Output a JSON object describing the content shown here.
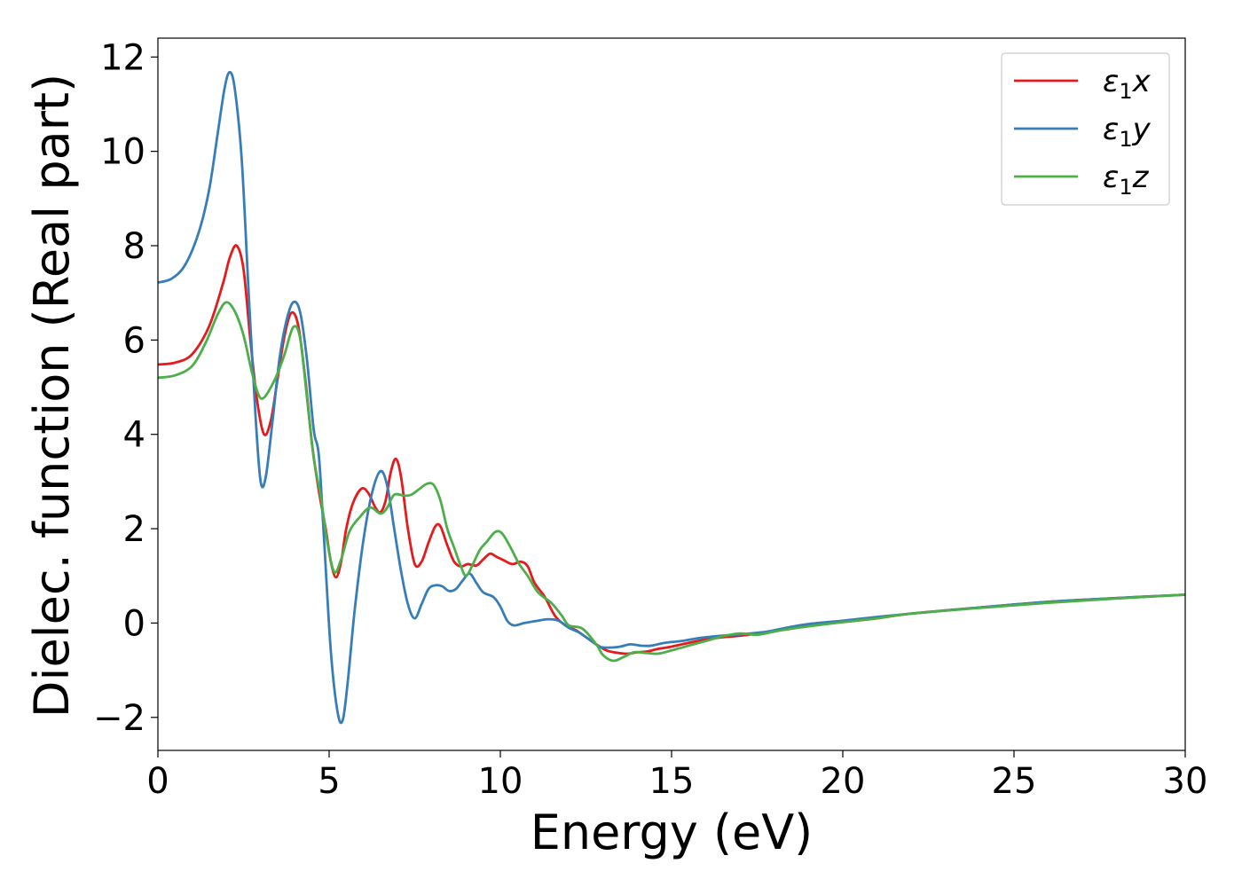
{
  "chart_data": {
    "type": "line",
    "title": "",
    "xlabel": "Energy (eV)",
    "ylabel": "Dielec. function (Real part)",
    "xlim": [
      0,
      30
    ],
    "ylim": [
      -2.7,
      12.4
    ],
    "xticks": [
      0,
      5,
      10,
      15,
      20,
      25,
      30
    ],
    "yticks": [
      -2,
      0,
      2,
      4,
      6,
      8,
      10,
      12
    ],
    "xtick_labels": [
      "0",
      "5",
      "10",
      "15",
      "20",
      "25",
      "30"
    ],
    "ytick_labels": [
      "−2",
      "0",
      "2",
      "4",
      "6",
      "8",
      "10",
      "12"
    ],
    "grid": false,
    "legend_position": "top-right",
    "series": [
      {
        "name": "ε₁x",
        "name_base": "ε",
        "name_sub": "1",
        "name_suffix": "x",
        "color": "#e41a1c",
        "points": [
          [
            0,
            5.48
          ],
          [
            0.5,
            5.52
          ],
          [
            1.0,
            5.7
          ],
          [
            1.5,
            6.3
          ],
          [
            1.9,
            7.2
          ],
          [
            2.1,
            7.75
          ],
          [
            2.3,
            8.0
          ],
          [
            2.5,
            7.5
          ],
          [
            2.7,
            6.0
          ],
          [
            2.9,
            4.7
          ],
          [
            3.1,
            4.0
          ],
          [
            3.3,
            4.3
          ],
          [
            3.5,
            5.2
          ],
          [
            3.7,
            6.1
          ],
          [
            3.9,
            6.58
          ],
          [
            4.1,
            6.3
          ],
          [
            4.3,
            5.2
          ],
          [
            4.5,
            3.8
          ],
          [
            4.7,
            2.8
          ],
          [
            4.9,
            2.0
          ],
          [
            5.05,
            1.3
          ],
          [
            5.2,
            0.97
          ],
          [
            5.35,
            1.3
          ],
          [
            5.5,
            2.0
          ],
          [
            5.7,
            2.55
          ],
          [
            5.95,
            2.85
          ],
          [
            6.15,
            2.75
          ],
          [
            6.35,
            2.45
          ],
          [
            6.5,
            2.35
          ],
          [
            6.65,
            2.6
          ],
          [
            6.8,
            3.2
          ],
          [
            6.95,
            3.48
          ],
          [
            7.1,
            3.1
          ],
          [
            7.3,
            2.0
          ],
          [
            7.5,
            1.25
          ],
          [
            7.7,
            1.3
          ],
          [
            7.9,
            1.7
          ],
          [
            8.1,
            2.05
          ],
          [
            8.25,
            2.05
          ],
          [
            8.45,
            1.65
          ],
          [
            8.65,
            1.3
          ],
          [
            8.85,
            1.2
          ],
          [
            9.05,
            1.25
          ],
          [
            9.3,
            1.22
          ],
          [
            9.5,
            1.35
          ],
          [
            9.7,
            1.47
          ],
          [
            9.9,
            1.4
          ],
          [
            10.1,
            1.33
          ],
          [
            10.35,
            1.25
          ],
          [
            10.6,
            1.3
          ],
          [
            10.8,
            1.2
          ],
          [
            11.0,
            0.85
          ],
          [
            11.3,
            0.55
          ],
          [
            11.6,
            0.15
          ],
          [
            11.9,
            -0.05
          ],
          [
            12.2,
            -0.15
          ],
          [
            12.5,
            -0.3
          ],
          [
            12.8,
            -0.45
          ],
          [
            13.1,
            -0.58
          ],
          [
            13.4,
            -0.63
          ],
          [
            13.7,
            -0.65
          ],
          [
            14.0,
            -0.62
          ],
          [
            14.3,
            -0.6
          ],
          [
            14.6,
            -0.55
          ],
          [
            15.0,
            -0.5
          ],
          [
            15.5,
            -0.42
          ],
          [
            16.0,
            -0.35
          ],
          [
            16.5,
            -0.3
          ],
          [
            17.0,
            -0.27
          ],
          [
            17.5,
            -0.22
          ],
          [
            18.0,
            -0.17
          ],
          [
            18.5,
            -0.12
          ],
          [
            19.0,
            -0.05
          ],
          [
            20.0,
            0.02
          ],
          [
            21.0,
            0.1
          ],
          [
            22.0,
            0.2
          ],
          [
            24.0,
            0.33
          ],
          [
            26.0,
            0.45
          ],
          [
            28.0,
            0.53
          ],
          [
            30.0,
            0.6
          ]
        ]
      },
      {
        "name": "ε₁y",
        "name_base": "ε",
        "name_sub": "1",
        "name_suffix": "y",
        "color": "#377eb8",
        "points": [
          [
            0,
            7.22
          ],
          [
            0.4,
            7.3
          ],
          [
            0.8,
            7.6
          ],
          [
            1.2,
            8.3
          ],
          [
            1.5,
            9.2
          ],
          [
            1.75,
            10.4
          ],
          [
            1.95,
            11.35
          ],
          [
            2.1,
            11.68
          ],
          [
            2.25,
            11.3
          ],
          [
            2.45,
            9.8
          ],
          [
            2.65,
            7.0
          ],
          [
            2.85,
            4.4
          ],
          [
            3.0,
            3.0
          ],
          [
            3.15,
            3.1
          ],
          [
            3.35,
            4.3
          ],
          [
            3.55,
            5.6
          ],
          [
            3.75,
            6.4
          ],
          [
            3.95,
            6.8
          ],
          [
            4.15,
            6.6
          ],
          [
            4.35,
            5.6
          ],
          [
            4.55,
            4.1
          ],
          [
            4.7,
            3.55
          ],
          [
            4.85,
            1.8
          ],
          [
            5.05,
            -0.6
          ],
          [
            5.25,
            -1.9
          ],
          [
            5.4,
            -2.05
          ],
          [
            5.55,
            -1.2
          ],
          [
            5.75,
            0.3
          ],
          [
            6.0,
            1.75
          ],
          [
            6.25,
            2.75
          ],
          [
            6.5,
            3.22
          ],
          [
            6.7,
            2.9
          ],
          [
            6.9,
            2.0
          ],
          [
            7.1,
            1.1
          ],
          [
            7.3,
            0.4
          ],
          [
            7.5,
            0.1
          ],
          [
            7.7,
            0.4
          ],
          [
            7.9,
            0.72
          ],
          [
            8.1,
            0.8
          ],
          [
            8.3,
            0.78
          ],
          [
            8.5,
            0.68
          ],
          [
            8.7,
            0.72
          ],
          [
            8.9,
            0.9
          ],
          [
            9.1,
            1.05
          ],
          [
            9.3,
            0.85
          ],
          [
            9.5,
            0.65
          ],
          [
            9.8,
            0.55
          ],
          [
            10.0,
            0.35
          ],
          [
            10.2,
            0.05
          ],
          [
            10.4,
            -0.05
          ],
          [
            10.7,
            0.0
          ],
          [
            11.1,
            0.05
          ],
          [
            11.4,
            0.08
          ],
          [
            11.7,
            0.05
          ],
          [
            12.0,
            -0.1
          ],
          [
            12.3,
            -0.2
          ],
          [
            12.6,
            -0.35
          ],
          [
            12.9,
            -0.5
          ],
          [
            13.2,
            -0.52
          ],
          [
            13.5,
            -0.5
          ],
          [
            13.8,
            -0.45
          ],
          [
            14.1,
            -0.48
          ],
          [
            14.4,
            -0.48
          ],
          [
            14.8,
            -0.42
          ],
          [
            15.3,
            -0.38
          ],
          [
            15.8,
            -0.32
          ],
          [
            16.3,
            -0.28
          ],
          [
            16.8,
            -0.25
          ],
          [
            17.3,
            -0.22
          ],
          [
            17.8,
            -0.18
          ],
          [
            18.5,
            -0.08
          ],
          [
            19.0,
            -0.02
          ],
          [
            20.0,
            0.05
          ],
          [
            21.0,
            0.13
          ],
          [
            22.0,
            0.2
          ],
          [
            24.0,
            0.33
          ],
          [
            26.0,
            0.45
          ],
          [
            28.0,
            0.53
          ],
          [
            30.0,
            0.6
          ]
        ]
      },
      {
        "name": "ε₁z",
        "name_base": "ε",
        "name_sub": "1",
        "name_suffix": "z",
        "color": "#4daf4a",
        "points": [
          [
            0,
            5.2
          ],
          [
            0.5,
            5.25
          ],
          [
            1.0,
            5.45
          ],
          [
            1.4,
            5.95
          ],
          [
            1.75,
            6.55
          ],
          [
            2.0,
            6.8
          ],
          [
            2.25,
            6.6
          ],
          [
            2.5,
            6.1
          ],
          [
            2.75,
            5.3
          ],
          [
            2.95,
            4.82
          ],
          [
            3.1,
            4.78
          ],
          [
            3.3,
            5.0
          ],
          [
            3.5,
            5.3
          ],
          [
            3.7,
            5.7
          ],
          [
            3.95,
            6.27
          ],
          [
            4.15,
            6.05
          ],
          [
            4.35,
            4.8
          ],
          [
            4.55,
            3.5
          ],
          [
            4.75,
            2.7
          ],
          [
            4.95,
            1.7
          ],
          [
            5.15,
            1.08
          ],
          [
            5.35,
            1.35
          ],
          [
            5.6,
            1.95
          ],
          [
            5.9,
            2.25
          ],
          [
            6.2,
            2.45
          ],
          [
            6.5,
            2.32
          ],
          [
            6.7,
            2.45
          ],
          [
            6.9,
            2.72
          ],
          [
            7.2,
            2.7
          ],
          [
            7.4,
            2.72
          ],
          [
            7.65,
            2.85
          ],
          [
            7.85,
            2.95
          ],
          [
            8.05,
            2.93
          ],
          [
            8.25,
            2.6
          ],
          [
            8.45,
            2.0
          ],
          [
            8.65,
            1.6
          ],
          [
            8.85,
            1.2
          ],
          [
            9.0,
            1.0
          ],
          [
            9.2,
            1.25
          ],
          [
            9.4,
            1.55
          ],
          [
            9.6,
            1.72
          ],
          [
            9.85,
            1.93
          ],
          [
            10.05,
            1.9
          ],
          [
            10.3,
            1.6
          ],
          [
            10.55,
            1.25
          ],
          [
            10.8,
            1.0
          ],
          [
            11.1,
            0.65
          ],
          [
            11.5,
            0.42
          ],
          [
            11.8,
            0.15
          ],
          [
            12.0,
            -0.05
          ],
          [
            12.4,
            -0.12
          ],
          [
            12.8,
            -0.45
          ],
          [
            13.0,
            -0.68
          ],
          [
            13.3,
            -0.8
          ],
          [
            13.6,
            -0.72
          ],
          [
            13.9,
            -0.62
          ],
          [
            14.2,
            -0.63
          ],
          [
            14.6,
            -0.65
          ],
          [
            15.0,
            -0.58
          ],
          [
            15.5,
            -0.48
          ],
          [
            16.0,
            -0.38
          ],
          [
            16.5,
            -0.28
          ],
          [
            17.0,
            -0.22
          ],
          [
            17.5,
            -0.25
          ],
          [
            18.0,
            -0.18
          ],
          [
            18.5,
            -0.12
          ],
          [
            19.0,
            -0.07
          ],
          [
            20.0,
            0.02
          ],
          [
            21.0,
            0.1
          ],
          [
            22.0,
            0.2
          ],
          [
            24.0,
            0.32
          ],
          [
            26.0,
            0.43
          ],
          [
            28.0,
            0.52
          ],
          [
            30.0,
            0.6
          ]
        ]
      }
    ]
  }
}
